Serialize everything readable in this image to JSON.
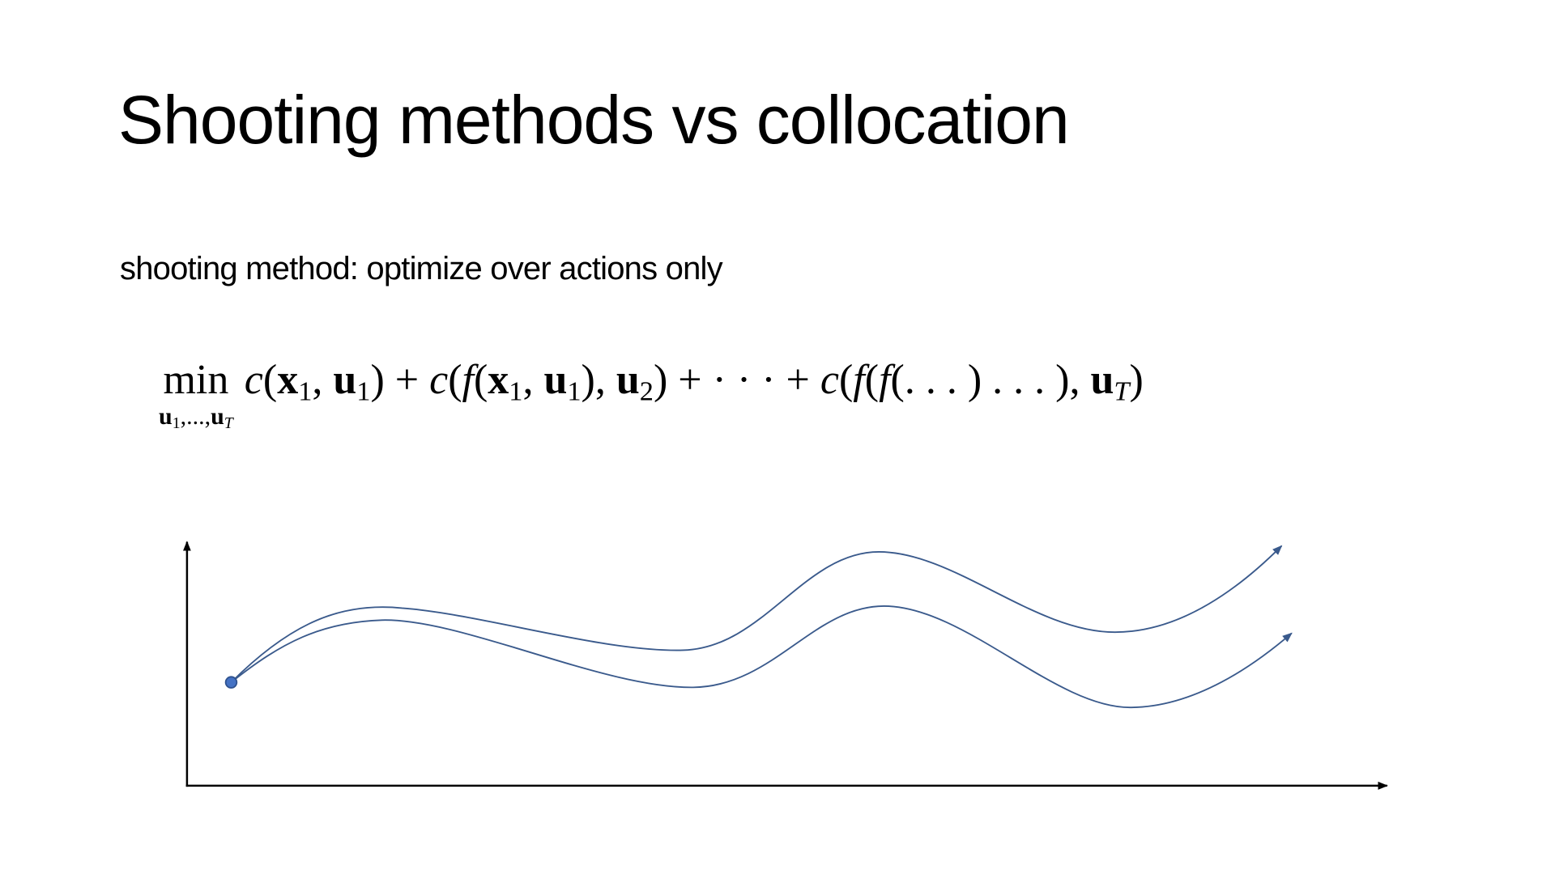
{
  "title": "Shooting methods vs collocation",
  "subtitle": "shooting method: optimize over actions only",
  "formula": {
    "operator": "min",
    "min_subscript": [
      "u",
      "1",
      ",...,",
      "u",
      "T"
    ],
    "expression": [
      "c",
      "(",
      "x",
      "1",
      ", ",
      "u",
      "1",
      ") + ",
      "c",
      "(",
      "f",
      "(",
      "x",
      "1",
      ", ",
      "u",
      "1",
      "), ",
      "u",
      "2",
      ") + · · · + ",
      "c",
      "(",
      "f",
      "(",
      "f",
      "(. . . ) . . . ), ",
      "u",
      "T",
      ")"
    ]
  }
}
